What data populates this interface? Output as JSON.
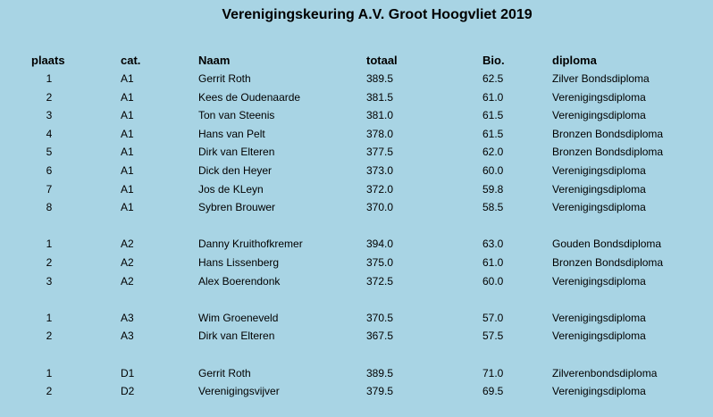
{
  "title": "Verenigingskeuring A.V. Groot Hoogvliet 2019",
  "header": [
    "plaats",
    "cat.",
    "Naam",
    "totaal",
    "Bio.",
    "diploma"
  ],
  "groups": [
    [
      [
        "1",
        "A1",
        "Gerrit Roth",
        "389.5",
        "62.5",
        "Zilver Bondsdiploma"
      ],
      [
        "2",
        "A1",
        "Kees de Oudenaarde",
        "381.5",
        "61.0",
        "Verenigingsdiploma"
      ],
      [
        "3",
        "A1",
        "Ton van Steenis",
        "381.0",
        "61.5",
        "Verenigingsdiploma"
      ],
      [
        "4",
        "A1",
        "Hans van Pelt",
        "378.0",
        "61.5",
        "Bronzen Bondsdiploma"
      ],
      [
        "5",
        "A1",
        "Dirk van Elteren",
        "377.5",
        "62.0",
        "Bronzen Bondsdiploma"
      ],
      [
        "6",
        "A1",
        "Dick den Heyer",
        "373.0",
        "60.0",
        "Verenigingsdiploma"
      ],
      [
        "7",
        "A1",
        "Jos de KLeyn",
        "372.0",
        "59.8",
        "Verenigingsdiploma"
      ],
      [
        "8",
        "A1",
        "Sybren Brouwer",
        "370.0",
        "58.5",
        "Verenigingsdiploma"
      ]
    ],
    [
      [
        "1",
        "A2",
        "Danny Kruithofkremer",
        "394.0",
        "63.0",
        "Gouden Bondsdiploma"
      ],
      [
        "2",
        "A2",
        "Hans Lissenberg",
        "375.0",
        "61.0",
        "Bronzen Bondsdiploma"
      ],
      [
        "3",
        "A2",
        "Alex Boerendonk",
        "372.5",
        "60.0",
        "Verenigingsdiploma"
      ]
    ],
    [
      [
        "1",
        "A3",
        "Wim Groeneveld",
        "370.5",
        "57.0",
        "Verenigingsdiploma"
      ],
      [
        "2",
        "A3",
        "Dirk van Elteren",
        "367.5",
        "57.5",
        "Verenigingsdiploma"
      ]
    ],
    [
      [
        "1",
        "D1",
        "Gerrit Roth",
        "389.5",
        "71.0",
        "Zilverenbondsdiploma"
      ],
      [
        "2",
        "D2",
        "Verenigingsvijver",
        "379.5",
        "69.5",
        "Verenigingsdiploma"
      ]
    ]
  ]
}
